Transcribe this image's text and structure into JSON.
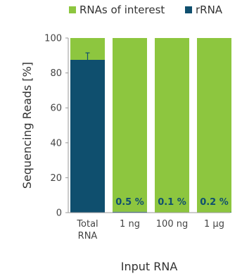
{
  "chart_data": {
    "type": "bar",
    "stacked": true,
    "categories": [
      "Total\nRNA",
      "1 ng",
      "100 ng",
      "1 µg"
    ],
    "series": [
      {
        "name": "RNAs of interest",
        "values": [
          12.5,
          99.5,
          99.9,
          99.8
        ]
      },
      {
        "name": "rRNA",
        "values": [
          87.5,
          0.5,
          0.1,
          0.2
        ]
      }
    ],
    "error": {
      "category_index": 0,
      "series_index": 1,
      "upper": 91.5,
      "lower": 87.5
    },
    "data_labels": [
      "",
      "0.5 %",
      "0.1 %",
      "0.2 %"
    ],
    "xlabel": "Input RNA",
    "ylabel": "Sequencing Reads [%]",
    "ylim": [
      0,
      100
    ],
    "yticks": [
      0,
      20,
      40,
      60,
      80,
      100
    ],
    "grid": false,
    "legend_position": "top",
    "colors": {
      "RNAs of interest": "#8dc63f",
      "rRNA": "#0f4f6e"
    }
  }
}
